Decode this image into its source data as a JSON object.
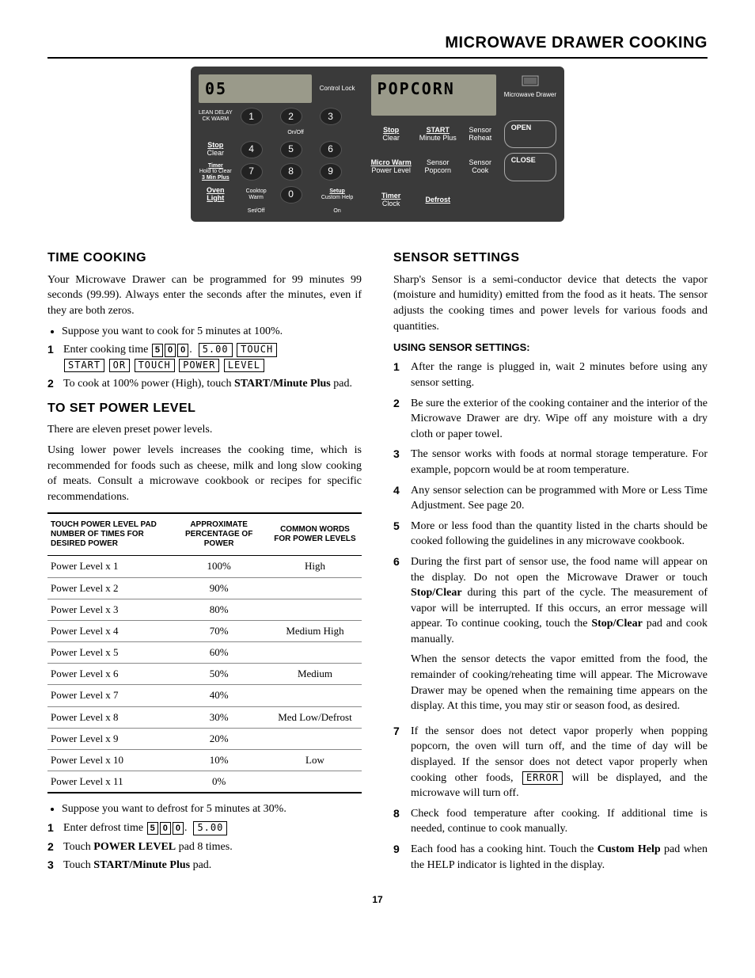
{
  "page": {
    "title": "MICROWAVE DRAWER COOKING",
    "number": "17"
  },
  "panel": {
    "left_display": "05",
    "right_display": "POPCORN",
    "left_labels": {
      "lean": "LEAN  DELAY\nCK  WARM",
      "control_lock": "Control Lock",
      "onoff": "On/Off",
      "stop_clear": "Stop",
      "stop_clear2": "Clear",
      "timer": "Timer",
      "timer2": "Hold to Clear",
      "timer3": "3 Min Plus",
      "oven_light": "Oven\nLight",
      "cooktop": "Cooktop\nWarm",
      "setoff": "Set/Off",
      "setup": "Setup",
      "custom": "Custom Help",
      "on": "On"
    },
    "right_labels": {
      "drawer": "Microwave\nDrawer",
      "stop_clear": "Stop",
      "stop_clear2": "Clear",
      "start": "START",
      "start2": "Minute Plus",
      "sensor_reheat": "Sensor\nReheat",
      "open": "OPEN",
      "micro_warm": "Micro Warm",
      "power_level": "Power Level",
      "sensor_popcorn": "Sensor\nPopcorn",
      "sensor_cook": "Sensor\nCook",
      "close": "CLOSE",
      "timer": "Timer",
      "clock": "Clock",
      "defrost": "Defrost"
    }
  },
  "time_cooking": {
    "heading": "TIME COOKING",
    "intro": "Your Microwave Drawer can be programmed for 99 minutes 99 seconds (99.99). Always enter the seconds after the minutes, even if they are both zeros.",
    "bullet1": "Suppose you want to cook for 5 minutes at 100%.",
    "step1_pre": "Enter cooking time ",
    "d1": "5",
    "d2": "0",
    "d3": "0",
    "cap1": "5.00",
    "cap2": "TOUCH",
    "cap3": "START",
    "cap4": "OR",
    "cap5": "TOUCH",
    "cap6": "POWER",
    "cap7": "LEVEL",
    "step2": "To cook at 100% power (High), touch ",
    "step2b": "START/Minute Plus",
    "step2c": " pad."
  },
  "power_level": {
    "heading": "TO SET POWER LEVEL",
    "p1": "There are eleven preset power levels.",
    "p2": "Using lower power levels increases the cooking time, which is recommended for foods such as cheese, milk and long slow cooking of meats. Consult a microwave cookbook or recipes for specific recommendations.",
    "table": {
      "headers": [
        "TOUCH POWER LEVEL PAD NUMBER OF TIMES FOR DESIRED POWER",
        "APPROXIMATE PERCENTAGE OF POWER",
        "COMMON WORDS FOR POWER LEVELS"
      ],
      "rows": [
        [
          "Power Level x 1",
          "100%",
          "High"
        ],
        [
          "Power Level x 2",
          "90%",
          ""
        ],
        [
          "Power Level x 3",
          "80%",
          ""
        ],
        [
          "Power Level x 4",
          "70%",
          "Medium High"
        ],
        [
          "Power Level x 5",
          "60%",
          ""
        ],
        [
          "Power Level x 6",
          "50%",
          "Medium"
        ],
        [
          "Power Level x 7",
          "40%",
          ""
        ],
        [
          "Power Level x 8",
          "30%",
          "Med Low/Defrost"
        ],
        [
          "Power Level x 9",
          "20%",
          ""
        ],
        [
          "Power Level x 10",
          "10%",
          "Low"
        ],
        [
          "Power Level x 11",
          "0%",
          ""
        ]
      ]
    },
    "bullet2": "Suppose you want to defrost for 5 minutes at 30%.",
    "s1_pre": "Enter defrost time ",
    "sd1": "5",
    "sd2": "0",
    "sd3": "0",
    "scap": "5.00",
    "s2a": "Touch ",
    "s2b": "POWER LEVEL",
    "s2c": " pad 8 times.",
    "s3a": "Touch ",
    "s3b": "START/Minute Plus",
    "s3c": " pad."
  },
  "sensor": {
    "heading": "SENSOR SETTINGS",
    "intro": "Sharp's Sensor is a semi-conductor device that detects the vapor (moisture and humidity) emitted from the food as it heats. The sensor adjusts the cooking times and power levels for various foods and quantities.",
    "sub": "USING SENSOR SETTINGS:",
    "items": [
      "After the range is plugged in, wait 2 minutes before using any sensor setting.",
      "Be sure the exterior of the cooking container and the interior of the Microwave Drawer are dry. Wipe off any moisture with a dry cloth or paper towel.",
      "The sensor works with foods at normal storage temperature. For example, popcorn would be at room temperature.",
      "Any sensor selection can be programmed with More or Less Time Adjustment. See page 20.",
      "More or less food than the quantity listed in the charts should be cooked following the guidelines in any microwave cookbook."
    ],
    "item6a": "During the first part of sensor use, the food name will appear on the display. Do not open the Microwave Drawer or touch ",
    "item6b": "Stop/Clear",
    "item6c": " during this part of the cycle. The measurement of vapor will be interrupted. If this occurs, an error message will appear. To continue cooking, touch the ",
    "item6d": "Stop/Clear",
    "item6e": " pad and cook manually.",
    "item6f": "When the sensor detects the vapor emitted from the food, the remainder of cooking/reheating time will appear. The Microwave Drawer may be opened when the remaining time appears on the display. At this time, you may stir or season food, as desired.",
    "item7a": "If the sensor does not detect vapor properly when popping popcorn, the oven will turn off, and the time of day will be displayed. If the sensor does not detect vapor properly when cooking other foods, ",
    "item7b": "ERROR",
    "item7c": " will be displayed, and the microwave will turn off.",
    "item8": "Check food temperature after cooking. If additional time is needed, continue to cook manually.",
    "item9a": "Each food has a cooking hint. Touch the ",
    "item9b": "Custom Help",
    "item9c": " pad when the HELP indicator is lighted in the display."
  }
}
